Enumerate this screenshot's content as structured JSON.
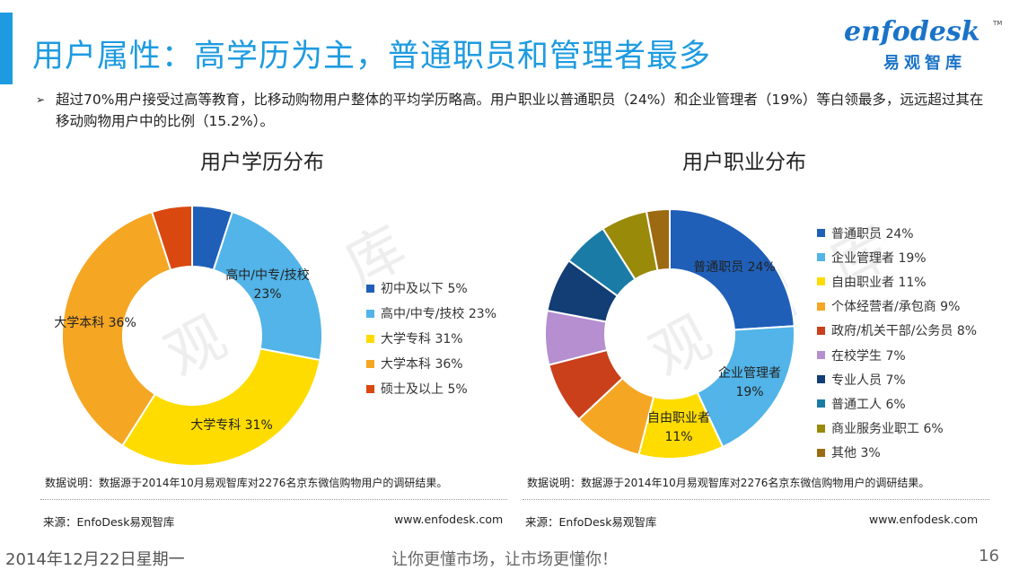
{
  "header": {
    "title": "用户属性：高学历为主，普通职员和管理者最多",
    "accent_color": "#1e9be0",
    "logo": {
      "word": "enfodesk",
      "tm": "TM",
      "cn": "易观智库",
      "color": "#1a73c8"
    }
  },
  "bullet": {
    "marker": "➢",
    "text": "超过70%用户接受过高等教育，比移动购物用户整体的平均学历略高。用户职业以普通职员（24%）和企业管理者（19%）等白领最多，远远超过其在移动购物用户中的比例（15.2%）。"
  },
  "chart_data": [
    {
      "type": "pie",
      "donut": true,
      "title": "用户学历分布",
      "legend_position": "right",
      "slices": [
        {
          "label": "初中及以下",
          "value": 5,
          "legend": "初中及以下 5%",
          "color": "#1f5fb8"
        },
        {
          "label": "高中/中专/技校",
          "value": 23,
          "legend": "高中/中专/技校 23%",
          "color": "#52b4e8",
          "data_label": [
            "高中/中专/技校",
            "23%"
          ]
        },
        {
          "label": "大学专科",
          "value": 31,
          "legend": "大学专科 31%",
          "color": "#ffdc00",
          "data_label": [
            "大学专科 31%"
          ]
        },
        {
          "label": "大学本科",
          "value": 36,
          "legend": "大学本科 36%",
          "color": "#f5a623",
          "data_label": [
            "大学本科 36%"
          ]
        },
        {
          "label": "硕士及以上",
          "value": 5,
          "legend": "硕士及以上 5%",
          "color": "#d9480f"
        }
      ]
    },
    {
      "type": "pie",
      "donut": true,
      "title": "用户职业分布",
      "legend_position": "right",
      "slices": [
        {
          "label": "普通职员",
          "value": 24,
          "legend": "普通职员 24%",
          "color": "#1f5fb8",
          "data_label": [
            "普通职员 24%"
          ]
        },
        {
          "label": "企业管理者",
          "value": 19,
          "legend": "企业管理者 19%",
          "color": "#52b4e8",
          "data_label": [
            "企业管理者",
            "19%"
          ]
        },
        {
          "label": "自由职业者",
          "value": 11,
          "legend": "自由职业者 11%",
          "color": "#ffdc00",
          "data_label": [
            "自由职业者",
            "11%"
          ]
        },
        {
          "label": "个体经营者/承包商",
          "value": 9,
          "legend": "个体经营者/承包商 9%",
          "color": "#f5a623"
        },
        {
          "label": "政府/机关干部/公务员",
          "value": 8,
          "legend": "政府/机关干部/公务员 8%",
          "color": "#c9401b"
        },
        {
          "label": "在校学生",
          "value": 7,
          "legend": "在校学生 7%",
          "color": "#b58fcf"
        },
        {
          "label": "专业人员",
          "value": 7,
          "legend": "专业人员 7%",
          "color": "#123d75"
        },
        {
          "label": "普通工人",
          "value": 6,
          "legend": "普通工人 6%",
          "color": "#1a7ca6"
        },
        {
          "label": "商业服务业职工",
          "value": 6,
          "legend": "商业服务业职工 6%",
          "color": "#9a8a0a"
        },
        {
          "label": "其他",
          "value": 3,
          "legend": "其他 3%",
          "color": "#9c6a10"
        }
      ]
    }
  ],
  "left_panel": {
    "note": "数据说明：数据源于2014年10月易观智库对2276名京东微信购物用户的调研结果。",
    "source": "来源：EnfoDesk易观智库",
    "website": "www.enfodesk.com"
  },
  "right_panel": {
    "note": "数据说明：数据源于2014年10月易观智库对2276名京东微信购物用户的调研结果。",
    "source": "来源：EnfoDesk易观智库",
    "website": "www.enfodesk.com"
  },
  "watermark": "易观智库",
  "footer": {
    "date": "2014年12月22日星期一",
    "slogan": "让你更懂市场，让市场更懂你！",
    "page": "16"
  }
}
